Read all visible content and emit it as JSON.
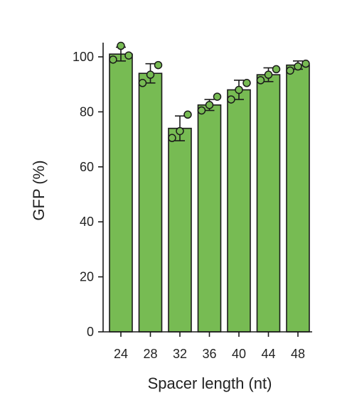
{
  "chart_data": {
    "type": "bar",
    "xlabel": "Spacer length (nt)",
    "ylabel": "GFP (%)",
    "ylim": [
      0,
      100
    ],
    "yticks": [
      0,
      20,
      40,
      60,
      80,
      100
    ],
    "categories": [
      "24",
      "28",
      "32",
      "36",
      "40",
      "44",
      "48"
    ],
    "values": [
      101,
      94,
      74,
      82.5,
      88,
      93.5,
      97
    ],
    "error": [
      2.5,
      3.5,
      4.5,
      2,
      3.5,
      2.5,
      1.5
    ],
    "points": [
      [
        99,
        104,
        100.5
      ],
      [
        90.5,
        93.5,
        97
      ],
      [
        70.5,
        73,
        79
      ],
      [
        80.5,
        82.5,
        85.5
      ],
      [
        84.5,
        88,
        90.5
      ],
      [
        91.5,
        93.5,
        95.5
      ],
      [
        95,
        96.5,
        97.5
      ]
    ],
    "grid": false,
    "colors": {
      "bar": "#77bb53",
      "edge": "#1a1a1a",
      "point": "#77bb53"
    }
  }
}
